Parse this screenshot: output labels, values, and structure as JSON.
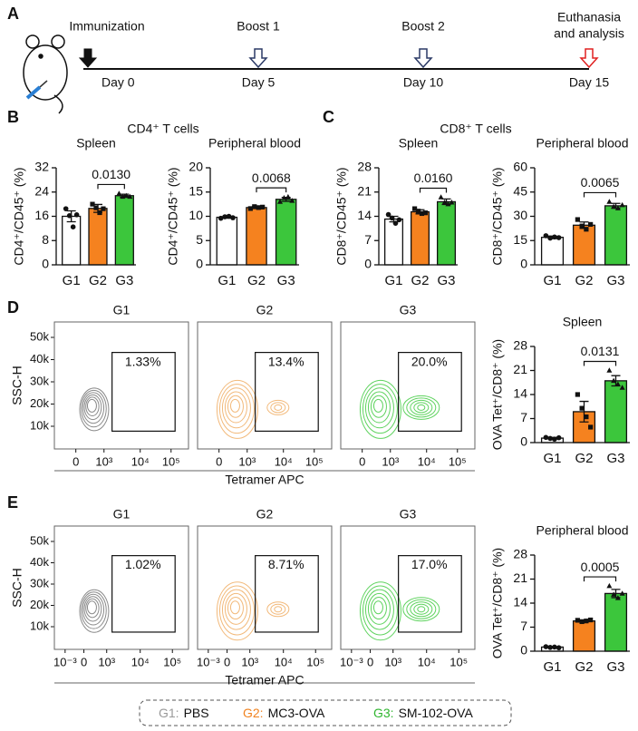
{
  "panels": [
    "A",
    "B",
    "C",
    "D",
    "E"
  ],
  "timeline": {
    "events": [
      {
        "label": [
          "Immunization"
        ],
        "day": "Day 0"
      },
      {
        "label": [
          "Boost 1"
        ],
        "day": "Day 5"
      },
      {
        "label": [
          "Boost 2"
        ],
        "day": "Day 10"
      },
      {
        "label": [
          "Euthanasia",
          "and analysis"
        ],
        "day": "Day 15"
      }
    ]
  },
  "group_titles": [
    "CD4⁺ T cells",
    "CD8⁺ T cells"
  ],
  "chart_data": [
    {
      "type": "bar",
      "title": "Spleen",
      "ylabel": "CD4⁺/CD45⁺ (%)",
      "categories": [
        "G1",
        "G2",
        "G3"
      ],
      "colors": [
        "#ffffff",
        "#f5821f",
        "#3cc63c"
      ],
      "label_colors": [
        "#999999",
        "#f0821f",
        "#2fb52f"
      ],
      "values": [
        16,
        18.6,
        22.8
      ],
      "errors": [
        1.8,
        1.3,
        0.5
      ],
      "points": [
        [
          18.5,
          16.2,
          12.5,
          16.5
        ],
        [
          20,
          18.8,
          17.2,
          18.5
        ],
        [
          23.5,
          22.5,
          22.8,
          22.5
        ]
      ],
      "ylim": [
        0,
        32
      ],
      "yticks": [
        0,
        8,
        16,
        24,
        32
      ],
      "comparison": {
        "from": 1,
        "to": 2,
        "label": "0.0130"
      }
    },
    {
      "type": "bar",
      "title": "Peripheral blood",
      "ylabel": "CD4⁺/CD45⁺ (%)",
      "categories": [
        "G1",
        "G2",
        "G3"
      ],
      "colors": [
        "#ffffff",
        "#f5821f",
        "#3cc63c"
      ],
      "label_colors": [
        "#999999",
        "#f0821f",
        "#2fb52f"
      ],
      "values": [
        9.8,
        11.8,
        13.5
      ],
      "errors": [
        0.2,
        0.2,
        0.4
      ],
      "points": [
        [
          9.6,
          9.9,
          10,
          9.7
        ],
        [
          11.6,
          12,
          11.8,
          11.9
        ],
        [
          13,
          13.8,
          14,
          13.2
        ]
      ],
      "ylim": [
        0,
        20
      ],
      "yticks": [
        0,
        5,
        10,
        15,
        20
      ],
      "comparison": {
        "from": 1,
        "to": 2,
        "label": "0.0068"
      }
    },
    {
      "type": "bar",
      "title": "Spleen",
      "ylabel": "CD8⁺/CD45⁺ (%)",
      "categories": [
        "G1",
        "G2",
        "G3"
      ],
      "colors": [
        "#ffffff",
        "#f5821f",
        "#3cc63c"
      ],
      "label_colors": [
        "#999999",
        "#f0821f",
        "#2fb52f"
      ],
      "values": [
        13.2,
        15.3,
        18.2
      ],
      "errors": [
        0.8,
        0.6,
        0.8
      ],
      "points": [
        [
          14.5,
          13.5,
          12,
          13
        ],
        [
          16.2,
          15.5,
          14.8,
          15
        ],
        [
          19.5,
          18,
          17.5,
          18
        ]
      ],
      "ylim": [
        0,
        28
      ],
      "yticks": [
        0,
        7,
        14,
        21,
        28
      ],
      "comparison": {
        "from": 1,
        "to": 2,
        "label": "0.0160"
      }
    },
    {
      "type": "bar",
      "title": "Peripheral blood",
      "ylabel": "CD8⁺/CD45⁺ (%)",
      "categories": [
        "G1",
        "G2",
        "G3"
      ],
      "colors": [
        "#ffffff",
        "#f5821f",
        "#3cc63c"
      ],
      "label_colors": [
        "#999999",
        "#f0821f",
        "#2fb52f"
      ],
      "values": [
        17,
        24.5,
        36.5
      ],
      "errors": [
        0.8,
        2,
        1.5
      ],
      "points": [
        [
          18,
          16.5,
          17.2,
          16.8
        ],
        [
          28,
          24,
          22,
          25
        ],
        [
          39,
          36,
          35,
          37
        ]
      ],
      "ylim": [
        0,
        60
      ],
      "yticks": [
        0,
        15,
        30,
        45,
        60
      ],
      "comparison": {
        "from": 1,
        "to": 2,
        "label": "0.0065"
      }
    },
    {
      "type": "bar",
      "title": "Spleen",
      "ylabel": "OVA Tet⁺/CD8⁺ (%)",
      "categories": [
        "G1",
        "G2",
        "G3"
      ],
      "colors": [
        "#ffffff",
        "#f5821f",
        "#3cc63c"
      ],
      "label_colors": [
        "#999999",
        "#f0821f",
        "#2fb52f"
      ],
      "values": [
        1.3,
        9,
        18
      ],
      "errors": [
        0.2,
        3,
        1.5
      ],
      "points": [
        [
          1.5,
          1.2,
          1,
          1.4
        ],
        [
          14,
          10,
          7.5,
          4.5
        ],
        [
          21,
          18,
          17,
          16
        ]
      ],
      "ylim": [
        0,
        28
      ],
      "yticks": [
        0,
        7,
        14,
        21,
        28
      ],
      "comparison": {
        "from": 1,
        "to": 2,
        "label": "0.0131"
      }
    },
    {
      "type": "bar",
      "title": "Peripheral blood",
      "ylabel": "OVA Tet⁺/CD8⁺ (%)",
      "categories": [
        "G1",
        "G2",
        "G3"
      ],
      "colors": [
        "#ffffff",
        "#f5821f",
        "#3cc63c"
      ],
      "label_colors": [
        "#999999",
        "#f0821f",
        "#2fb52f"
      ],
      "values": [
        1.2,
        8.8,
        16.8
      ],
      "errors": [
        0.1,
        0.3,
        1.2
      ],
      "points": [
        [
          1.3,
          1.1,
          1.2,
          1
        ],
        [
          9,
          8.6,
          8.8,
          9.1
        ],
        [
          19,
          16.5,
          15.5,
          16.8
        ]
      ],
      "ylim": [
        0,
        28
      ],
      "yticks": [
        0,
        7,
        14,
        21,
        28
      ],
      "comparison": {
        "from": 1,
        "to": 2,
        "label": "0.0005"
      }
    }
  ],
  "flow": [
    {
      "groups": [
        "G1",
        "G2",
        "G3"
      ],
      "gates": [
        "1.33%",
        "13.4%",
        "20.0%"
      ],
      "ylabel": "SSC-H",
      "yticks": [
        "10k",
        "20k",
        "30k",
        "40k",
        "50k"
      ],
      "xticks": [
        "0",
        "10³",
        "10⁴",
        "10⁵"
      ],
      "xlabel": "Tetramer APC"
    },
    {
      "groups": [
        "G1",
        "G2",
        "G3"
      ],
      "gates": [
        "1.02%",
        "8.71%",
        "17.0%"
      ],
      "ylabel": "SSC-H",
      "yticks": [
        "10k",
        "20k",
        "30k",
        "40k",
        "50k"
      ],
      "xticks": [
        "10⁻³",
        "0",
        "10³",
        "10⁴",
        "10⁵"
      ],
      "xlabel": "Tetramer APC"
    }
  ],
  "legend": [
    {
      "key": "G1:",
      "name": "PBS"
    },
    {
      "key": "G2:",
      "name": "MC3-OVA"
    },
    {
      "key": "G3:",
      "name": "SM-102-OVA"
    }
  ]
}
